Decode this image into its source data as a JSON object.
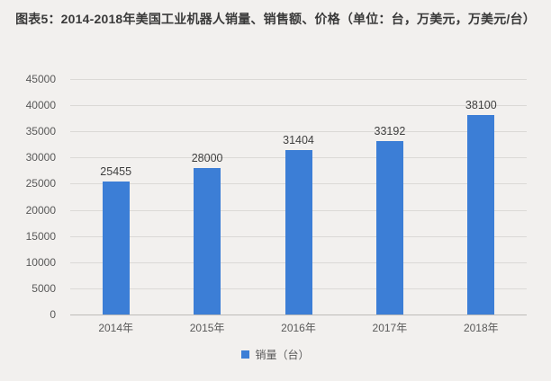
{
  "title": "图表5：2014-2018年美国工业机器人销量、销售额、价格（单位：台，万美元，万美元/台）",
  "chart_data": {
    "type": "bar",
    "title": "图表5：2014-2018年美国工业机器人销量、销售额、价格（单位：台，万美元，万美元/台）",
    "categories": [
      "2014年",
      "2015年",
      "2016年",
      "2017年",
      "2018年"
    ],
    "values": [
      25455,
      28000,
      31404,
      33192,
      38100
    ],
    "series_name": "销量（台）",
    "ylim": [
      0,
      45000
    ],
    "ytick_interval": 5000,
    "grid": true,
    "legend_position": "bottom",
    "bar_color": "#3c7ed6",
    "background_color": "#f2f0ee"
  }
}
